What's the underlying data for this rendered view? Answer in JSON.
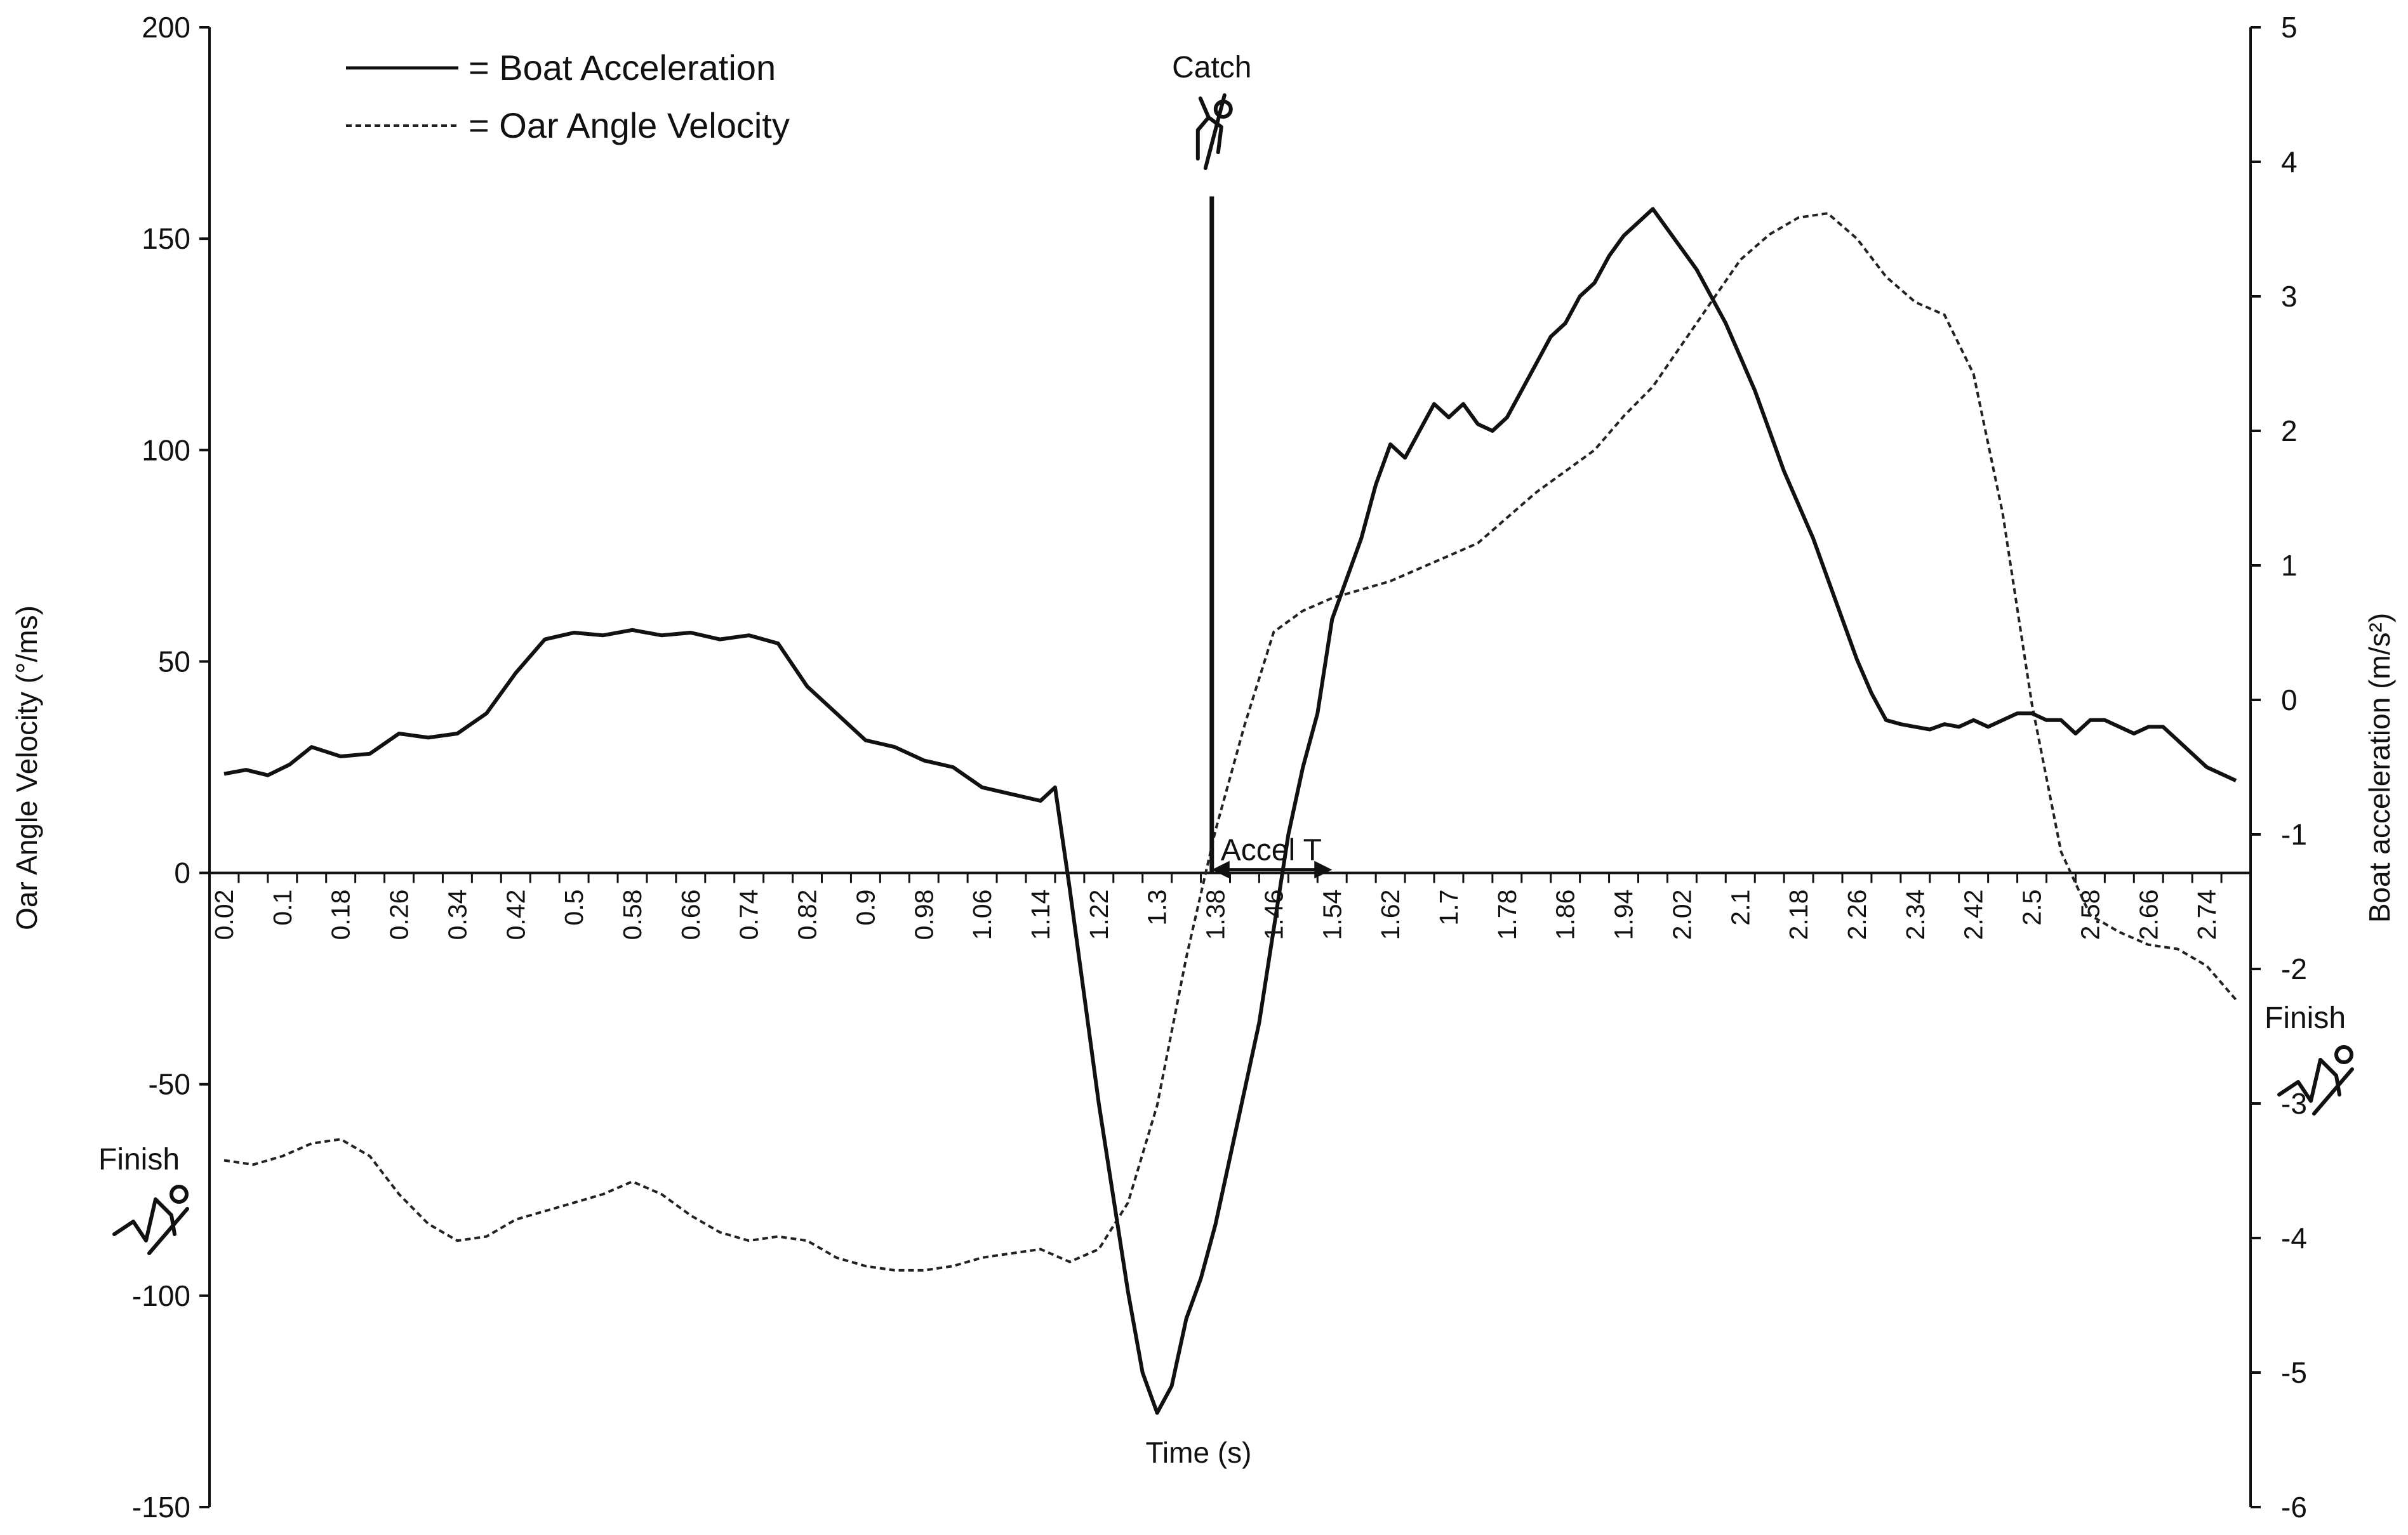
{
  "chart_data": {
    "type": "line",
    "title": "",
    "xlabel": "Time (s)",
    "ylabel_left": "Oar Angle Velocity (°/ms)",
    "ylabel_right": "Boat acceleration (m/s²)",
    "xlim": [
      0.0,
      2.8
    ],
    "ylim_left": [
      -150,
      200
    ],
    "ylim_right": [
      -6,
      5
    ],
    "yticks_left": [
      "200",
      "150",
      "100",
      "50",
      "0",
      "-50",
      "-100",
      "-150"
    ],
    "yticks_left_values": [
      200,
      150,
      100,
      50,
      0,
      -50,
      -100,
      -150
    ],
    "yticks_right": [
      "5",
      "4",
      "3",
      "2",
      "1",
      "0",
      "-1",
      "-2",
      "-3",
      "-4",
      "-5",
      "-6"
    ],
    "yticks_right_values": [
      5,
      4,
      3,
      2,
      1,
      0,
      -1,
      -2,
      -3,
      -4,
      -5,
      -6
    ],
    "xticks": [
      "0.02",
      "0.1",
      "0.18",
      "0.26",
      "0.34",
      "0.42",
      "0.5",
      "0.58",
      "0.66",
      "0.74",
      "0.82",
      "0.9",
      "0.98",
      "1.06",
      "1.14",
      "1.22",
      "1.3",
      "1.38",
      "1.46",
      "1.54",
      "1.62",
      "1.7",
      "1.78",
      "1.86",
      "1.94",
      "2.02",
      "2.1",
      "2.18",
      "2.26",
      "2.34",
      "2.42",
      "2.5",
      "2.58",
      "2.66",
      "2.74"
    ],
    "xtick_values": [
      0.02,
      0.1,
      0.18,
      0.26,
      0.34,
      0.42,
      0.5,
      0.58,
      0.66,
      0.74,
      0.82,
      0.9,
      0.98,
      1.06,
      1.14,
      1.22,
      1.3,
      1.38,
      1.46,
      1.54,
      1.62,
      1.7,
      1.78,
      1.86,
      1.94,
      2.02,
      2.1,
      2.18,
      2.26,
      2.34,
      2.42,
      2.5,
      2.58,
      2.66,
      2.74
    ],
    "grid": false,
    "legend": {
      "position": "top-left",
      "entries": [
        "= Boat Acceleration",
        "= Oar Angle Velocity"
      ]
    },
    "series": [
      {
        "name": "Boat Acceleration",
        "axis": "right",
        "style": "solid",
        "x": [
          0.02,
          0.05,
          0.08,
          0.11,
          0.14,
          0.18,
          0.22,
          0.26,
          0.3,
          0.34,
          0.38,
          0.42,
          0.46,
          0.5,
          0.54,
          0.58,
          0.62,
          0.66,
          0.7,
          0.74,
          0.78,
          0.82,
          0.86,
          0.9,
          0.94,
          0.98,
          1.02,
          1.06,
          1.1,
          1.14,
          1.16,
          1.18,
          1.2,
          1.22,
          1.24,
          1.26,
          1.28,
          1.3,
          1.32,
          1.34,
          1.36,
          1.38,
          1.4,
          1.42,
          1.44,
          1.46,
          1.48,
          1.5,
          1.52,
          1.54,
          1.56,
          1.58,
          1.6,
          1.62,
          1.64,
          1.66,
          1.68,
          1.7,
          1.72,
          1.74,
          1.76,
          1.78,
          1.8,
          1.82,
          1.84,
          1.86,
          1.88,
          1.9,
          1.92,
          1.94,
          1.96,
          1.98,
          2.0,
          2.02,
          2.04,
          2.06,
          2.08,
          2.1,
          2.12,
          2.14,
          2.16,
          2.18,
          2.2,
          2.22,
          2.24,
          2.26,
          2.28,
          2.3,
          2.32,
          2.34,
          2.36,
          2.38,
          2.4,
          2.42,
          2.44,
          2.46,
          2.48,
          2.5,
          2.52,
          2.54,
          2.56,
          2.58,
          2.6,
          2.62,
          2.64,
          2.66,
          2.68,
          2.7,
          2.72,
          2.74,
          2.76,
          2.78
        ],
        "y": [
          -0.55,
          -0.52,
          -0.56,
          -0.48,
          -0.35,
          -0.42,
          -0.4,
          -0.25,
          -0.28,
          -0.25,
          -0.1,
          0.2,
          0.45,
          0.5,
          0.48,
          0.52,
          0.48,
          0.5,
          0.45,
          0.48,
          0.42,
          0.1,
          -0.1,
          -0.3,
          -0.35,
          -0.45,
          -0.5,
          -0.65,
          -0.7,
          -0.75,
          -0.65,
          -1.4,
          -2.2,
          -3.0,
          -3.7,
          -4.4,
          -5.0,
          -5.3,
          -5.1,
          -4.6,
          -4.3,
          -3.9,
          -3.4,
          -2.9,
          -2.4,
          -1.7,
          -1.0,
          -0.5,
          -0.1,
          0.6,
          0.9,
          1.2,
          1.6,
          1.9,
          1.8,
          2.0,
          2.2,
          2.1,
          2.2,
          2.05,
          2.0,
          2.1,
          2.3,
          2.5,
          2.7,
          2.8,
          3.0,
          3.1,
          3.3,
          3.45,
          3.55,
          3.65,
          3.5,
          3.35,
          3.2,
          3.0,
          2.8,
          2.55,
          2.3,
          2.0,
          1.7,
          1.45,
          1.2,
          0.9,
          0.6,
          0.3,
          0.05,
          -0.15,
          -0.18,
          -0.2,
          -0.22,
          -0.18,
          -0.2,
          -0.15,
          -0.2,
          -0.15,
          -0.1,
          -0.1,
          -0.15,
          -0.15,
          -0.25,
          -0.15,
          -0.15,
          -0.2,
          -0.25,
          -0.2,
          -0.2,
          -0.3,
          -0.4,
          -0.5,
          -0.55,
          -0.6
        ],
        "y_left_equiv_note": ""
      },
      {
        "name": "Oar Angle Velocity",
        "axis": "left",
        "style": "dashed",
        "x": [
          0.02,
          0.06,
          0.1,
          0.14,
          0.18,
          0.22,
          0.26,
          0.3,
          0.34,
          0.38,
          0.42,
          0.46,
          0.5,
          0.54,
          0.58,
          0.62,
          0.66,
          0.7,
          0.74,
          0.78,
          0.82,
          0.86,
          0.9,
          0.94,
          0.98,
          1.02,
          1.06,
          1.1,
          1.14,
          1.18,
          1.22,
          1.26,
          1.3,
          1.34,
          1.38,
          1.42,
          1.46,
          1.5,
          1.54,
          1.58,
          1.62,
          1.66,
          1.7,
          1.74,
          1.78,
          1.82,
          1.86,
          1.9,
          1.94,
          1.98,
          2.02,
          2.06,
          2.1,
          2.14,
          2.18,
          2.22,
          2.26,
          2.3,
          2.34,
          2.38,
          2.42,
          2.46,
          2.5,
          2.54,
          2.58,
          2.62,
          2.66,
          2.7,
          2.74,
          2.78
        ],
        "y": [
          -68,
          -69,
          -67,
          -64,
          -63,
          -67,
          -76,
          -83,
          -87,
          -86,
          -82,
          -80,
          -78,
          -76,
          -73,
          -76,
          -81,
          -85,
          -87,
          -86,
          -87,
          -91,
          -93,
          -94,
          -94,
          -93,
          -91,
          -90,
          -89,
          -92,
          -89,
          -78,
          -55,
          -20,
          10,
          35,
          57,
          62,
          65,
          67,
          69,
          72,
          75,
          78,
          84,
          90,
          95,
          100,
          108,
          115,
          125,
          135,
          145,
          151,
          155,
          156,
          150,
          141,
          135,
          132,
          118,
          85,
          40,
          5,
          -10,
          -14,
          -17,
          -18,
          -22,
          -30
        ]
      }
    ],
    "annotations": {
      "catch_label": "Catch",
      "catch_x": 1.375,
      "catch_y_top_left": 160,
      "accel_label": "Accel T",
      "accel_start_x": 1.375,
      "accel_end_x": 1.54,
      "finish_left_label": "Finish",
      "finish_right_label": "Finish"
    }
  }
}
